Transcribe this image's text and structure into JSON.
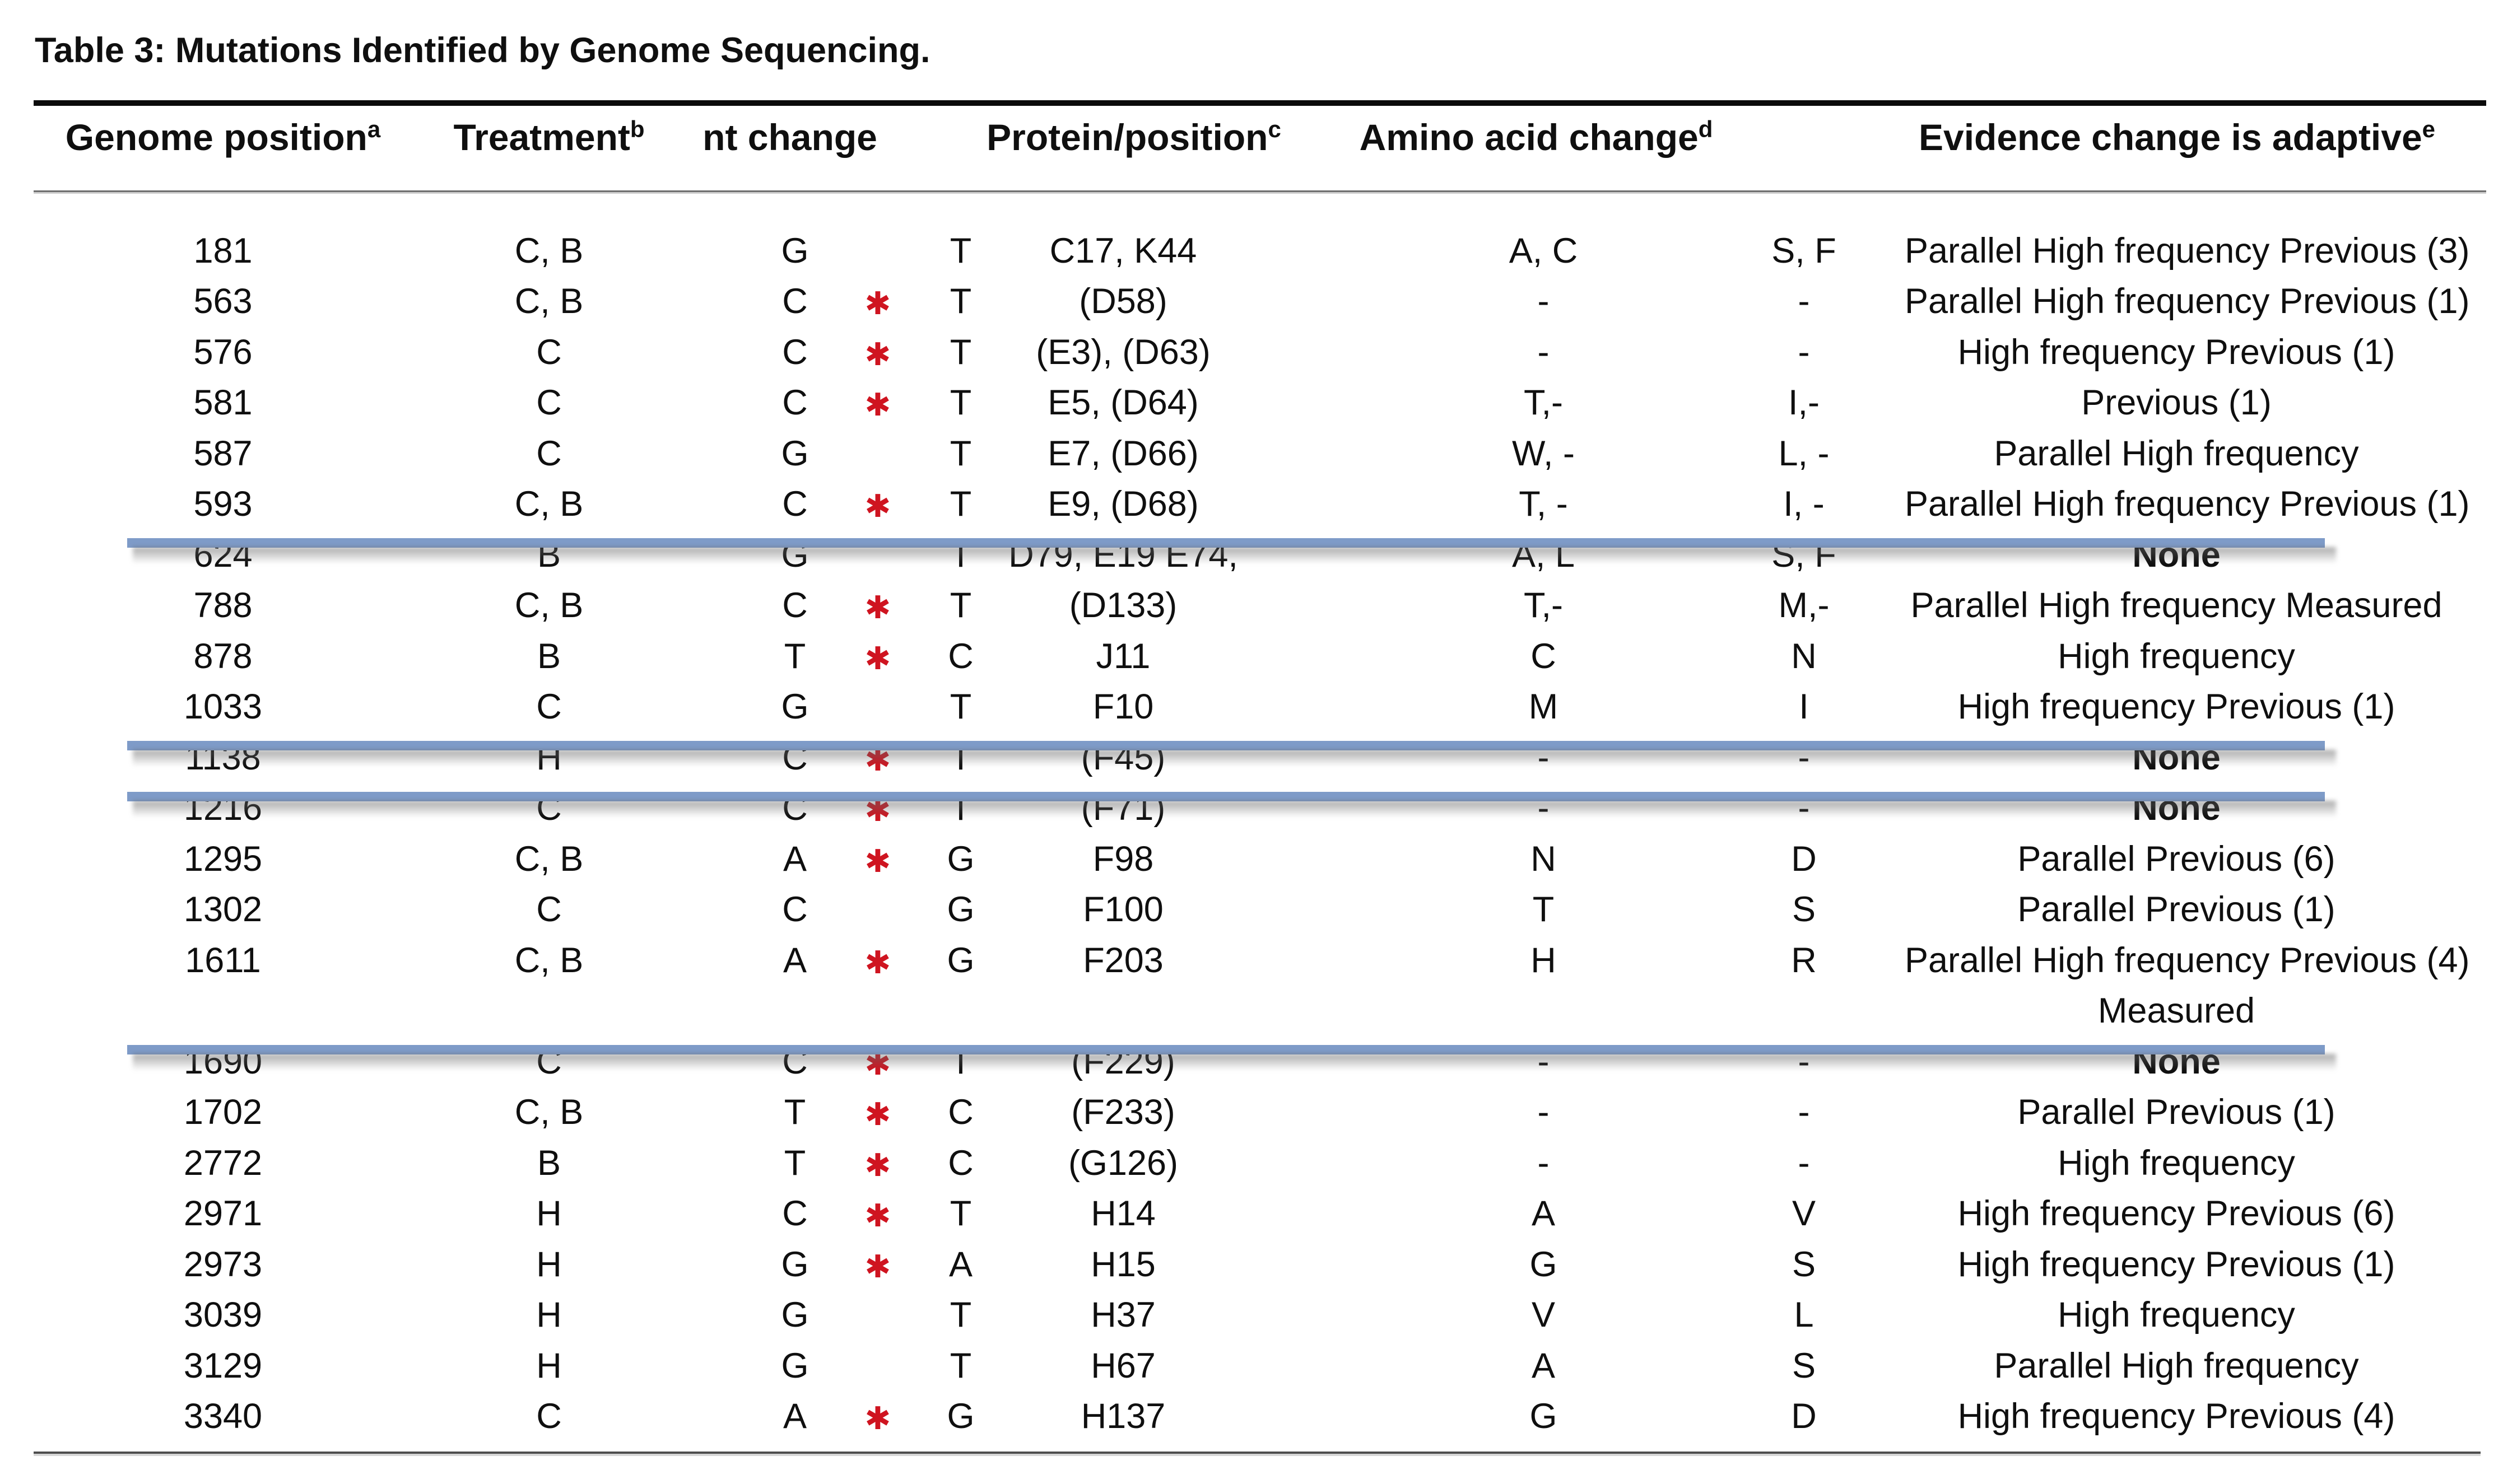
{
  "title": "Table 3: Mutations Identified by Genome Sequencing.",
  "colors": {
    "strike_line": "#7e9bc8",
    "asterisk_red": "#cf1420",
    "text": "#0f0f0f"
  },
  "header": {
    "columns": [
      {
        "label": "Genome position",
        "sup": "a"
      },
      {
        "label": "Treatment",
        "sup": "b"
      },
      {
        "label": "nt change",
        "sup": ""
      },
      {
        "label": "Protein/position",
        "sup": "c"
      },
      {
        "label": "Amino acid change",
        "sup": "d"
      },
      {
        "label": "Evidence change is adaptive",
        "sup": "e"
      }
    ]
  },
  "rows": [
    {
      "pos": "181",
      "treat": "C, B",
      "from": "G",
      "ast": false,
      "to": "T",
      "prot": "C17, K44",
      "aa1": "A, C",
      "aa2": "S, F",
      "ev": "Parallel High frequency Previous (3)",
      "struck": false,
      "ev_bold": false
    },
    {
      "pos": "563",
      "treat": "C, B",
      "from": "C",
      "ast": true,
      "to": "T",
      "prot": "(D58)",
      "aa1": "-",
      "aa2": "-",
      "ev": "Parallel High frequency Previous (1)",
      "struck": false,
      "ev_bold": false
    },
    {
      "pos": "576",
      "treat": "C",
      "from": "C",
      "ast": true,
      "to": "T",
      "prot": "(E3), (D63)",
      "aa1": "-",
      "aa2": "-",
      "ev": "High frequency Previous (1)",
      "struck": false,
      "ev_bold": false
    },
    {
      "pos": "581",
      "treat": "C",
      "from": "C",
      "ast": true,
      "to": "T",
      "prot": "E5, (D64)",
      "aa1": "T,-",
      "aa2": "I,-",
      "ev": "Previous (1)",
      "struck": false,
      "ev_bold": false
    },
    {
      "pos": "587",
      "treat": "C",
      "from": "G",
      "ast": false,
      "to": "T",
      "prot": "E7, (D66)",
      "aa1": "W, -",
      "aa2": "L, -",
      "ev": "Parallel High frequency",
      "struck": false,
      "ev_bold": false
    },
    {
      "pos": "593",
      "treat": "C, B",
      "from": "C",
      "ast": true,
      "to": "T",
      "prot": "E9, (D68)",
      "aa1": "T, -",
      "aa2": "I, -",
      "ev": "Parallel High frequency Previous (1)",
      "struck": false,
      "ev_bold": false
    },
    {
      "pos": "624",
      "treat": "B",
      "from": "G",
      "ast": false,
      "to": "T",
      "prot": "D79, E19 E74,",
      "aa1": "A, L",
      "aa2": "S, F",
      "ev": "None",
      "struck": true,
      "ev_bold": true
    },
    {
      "pos": "788",
      "treat": "C, B",
      "from": "C",
      "ast": true,
      "to": "T",
      "prot": "(D133)",
      "aa1": "T,-",
      "aa2": "M,-",
      "ev": "Parallel High frequency Measured",
      "struck": false,
      "ev_bold": false
    },
    {
      "pos": "878",
      "treat": "B",
      "from": "T",
      "ast": true,
      "to": "C",
      "prot": "J11",
      "aa1": "C",
      "aa2": "N",
      "ev": "High frequency",
      "struck": false,
      "ev_bold": false
    },
    {
      "pos": "1033",
      "treat": "C",
      "from": "G",
      "ast": false,
      "to": "T",
      "prot": "F10",
      "aa1": "M",
      "aa2": "I",
      "ev": "High frequency Previous (1)",
      "struck": false,
      "ev_bold": false
    },
    {
      "pos": "1138",
      "treat": "H",
      "from": "C",
      "ast": true,
      "to": "T",
      "prot": "(F45)",
      "aa1": "-",
      "aa2": "-",
      "ev": "None",
      "struck": true,
      "ev_bold": true
    },
    {
      "pos": "1216",
      "treat": "C",
      "from": "C",
      "ast": true,
      "to": "T",
      "prot": "(F71)",
      "aa1": "-",
      "aa2": "-",
      "ev": "None",
      "struck": true,
      "ev_bold": true
    },
    {
      "pos": "1295",
      "treat": "C, B",
      "from": "A",
      "ast": true,
      "to": "G",
      "prot": "F98",
      "aa1": "N",
      "aa2": "D",
      "ev": "Parallel Previous (6)",
      "struck": false,
      "ev_bold": false
    },
    {
      "pos": "1302",
      "treat": "C",
      "from": "C",
      "ast": false,
      "to": "G",
      "prot": "F100",
      "aa1": "T",
      "aa2": "S",
      "ev": "Parallel Previous (1)",
      "struck": false,
      "ev_bold": false
    },
    {
      "pos": "1611",
      "treat": "C, B",
      "from": "A",
      "ast": true,
      "to": "G",
      "prot": "F203",
      "aa1": "H",
      "aa2": "R",
      "ev": "Parallel High frequency Previous (4)",
      "struck": false,
      "ev_bold": false
    },
    {
      "pos": "",
      "treat": "",
      "from": "",
      "ast": false,
      "to": "",
      "prot": "",
      "aa1": "",
      "aa2": "",
      "ev": "Measured",
      "struck": false,
      "ev_bold": false
    },
    {
      "pos": "1690",
      "treat": "C",
      "from": "C",
      "ast": true,
      "to": "T",
      "prot": "(F229)",
      "aa1": "-",
      "aa2": "-",
      "ev": "None",
      "struck": true,
      "ev_bold": true
    },
    {
      "pos": "1702",
      "treat": "C, B",
      "from": "T",
      "ast": true,
      "to": "C",
      "prot": "(F233)",
      "aa1": "-",
      "aa2": "-",
      "ev": "Parallel Previous (1)",
      "struck": false,
      "ev_bold": false
    },
    {
      "pos": "2772",
      "treat": "B",
      "from": "T",
      "ast": true,
      "to": "C",
      "prot": "(G126)",
      "aa1": "-",
      "aa2": "-",
      "ev": "High frequency",
      "struck": false,
      "ev_bold": false
    },
    {
      "pos": "2971",
      "treat": "H",
      "from": "C",
      "ast": true,
      "to": "T",
      "prot": "H14",
      "aa1": "A",
      "aa2": "V",
      "ev": "High frequency Previous (6)",
      "struck": false,
      "ev_bold": false
    },
    {
      "pos": "2973",
      "treat": "H",
      "from": "G",
      "ast": true,
      "to": "A",
      "prot": "H15",
      "aa1": "G",
      "aa2": "S",
      "ev": "High frequency Previous (1)",
      "struck": false,
      "ev_bold": false
    },
    {
      "pos": "3039",
      "treat": "H",
      "from": "G",
      "ast": false,
      "to": "T",
      "prot": "H37",
      "aa1": "V",
      "aa2": "L",
      "ev": "High frequency",
      "struck": false,
      "ev_bold": false
    },
    {
      "pos": "3129",
      "treat": "H",
      "from": "G",
      "ast": false,
      "to": "T",
      "prot": "H67",
      "aa1": "A",
      "aa2": "S",
      "ev": "Parallel High frequency",
      "struck": false,
      "ev_bold": false
    },
    {
      "pos": "3340",
      "treat": "C",
      "from": "A",
      "ast": true,
      "to": "G",
      "prot": "H137",
      "aa1": "G",
      "aa2": "D",
      "ev": "High frequency Previous (4)",
      "struck": false,
      "ev_bold": false
    }
  ]
}
